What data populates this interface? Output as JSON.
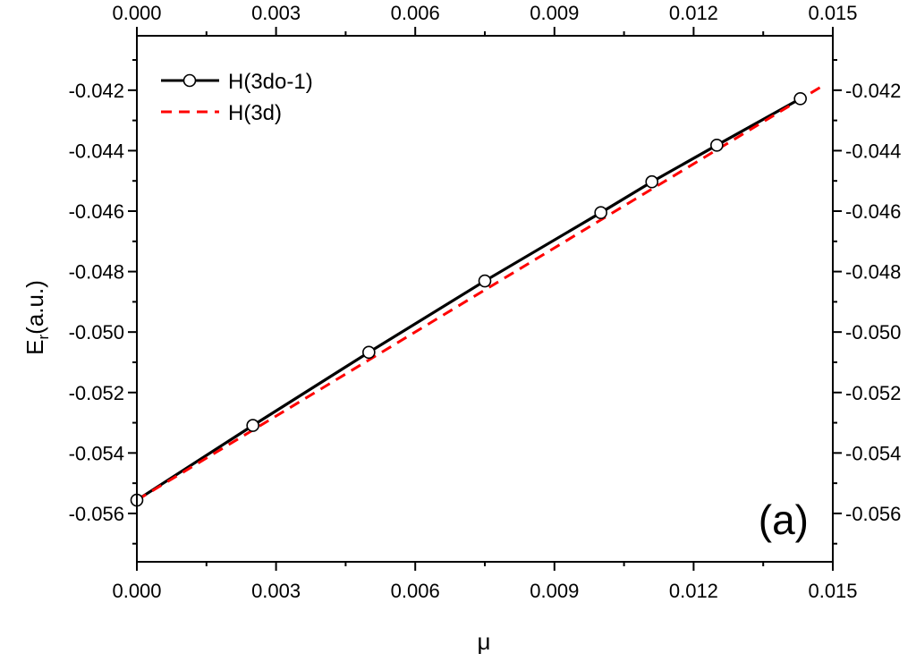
{
  "chart_data": {
    "type": "line",
    "xlabel": "μ",
    "ylabel_main": "E",
    "ylabel_sub": "r",
    "ylabel_rest": "(a.u.)",
    "xlim": [
      0,
      0.015
    ],
    "ylim": [
      -0.0576,
      -0.0402
    ],
    "x_ticks": [
      {
        "value": 0,
        "label": "0.000"
      },
      {
        "value": 0.003,
        "label": "0.003"
      },
      {
        "value": 0.006,
        "label": "0.006"
      },
      {
        "value": 0.009,
        "label": "0.009"
      },
      {
        "value": 0.012,
        "label": "0.012"
      },
      {
        "value": 0.015,
        "label": "0.015"
      }
    ],
    "y_ticks": [
      {
        "value": -0.042,
        "label": "-0.042"
      },
      {
        "value": -0.044,
        "label": "-0.044"
      },
      {
        "value": -0.046,
        "label": "-0.046"
      },
      {
        "value": -0.048,
        "label": "-0.048"
      },
      {
        "value": -0.05,
        "label": "-0.050"
      },
      {
        "value": -0.052,
        "label": "-0.052"
      },
      {
        "value": -0.054,
        "label": "-0.054"
      },
      {
        "value": -0.056,
        "label": "-0.056"
      }
    ],
    "annotation": "(a)",
    "legend_position": "top-left",
    "grid": false,
    "series": [
      {
        "name": "H(3do-1)",
        "style": "solid-with-open-circles",
        "color": "#000000",
        "x": [
          0,
          0.0025,
          0.005,
          0.0075,
          0.01,
          0.0111,
          0.0125,
          0.0143
        ],
        "y": [
          -0.05556,
          -0.05309,
          -0.05067,
          -0.04831,
          -0.04605,
          -0.04503,
          -0.04382,
          -0.04228
        ]
      },
      {
        "name": "H(3d)",
        "style": "dashed",
        "color": "#ff0000",
        "x": [
          0,
          0.0148
        ],
        "y": [
          -0.05556,
          -0.04184
        ]
      }
    ]
  }
}
